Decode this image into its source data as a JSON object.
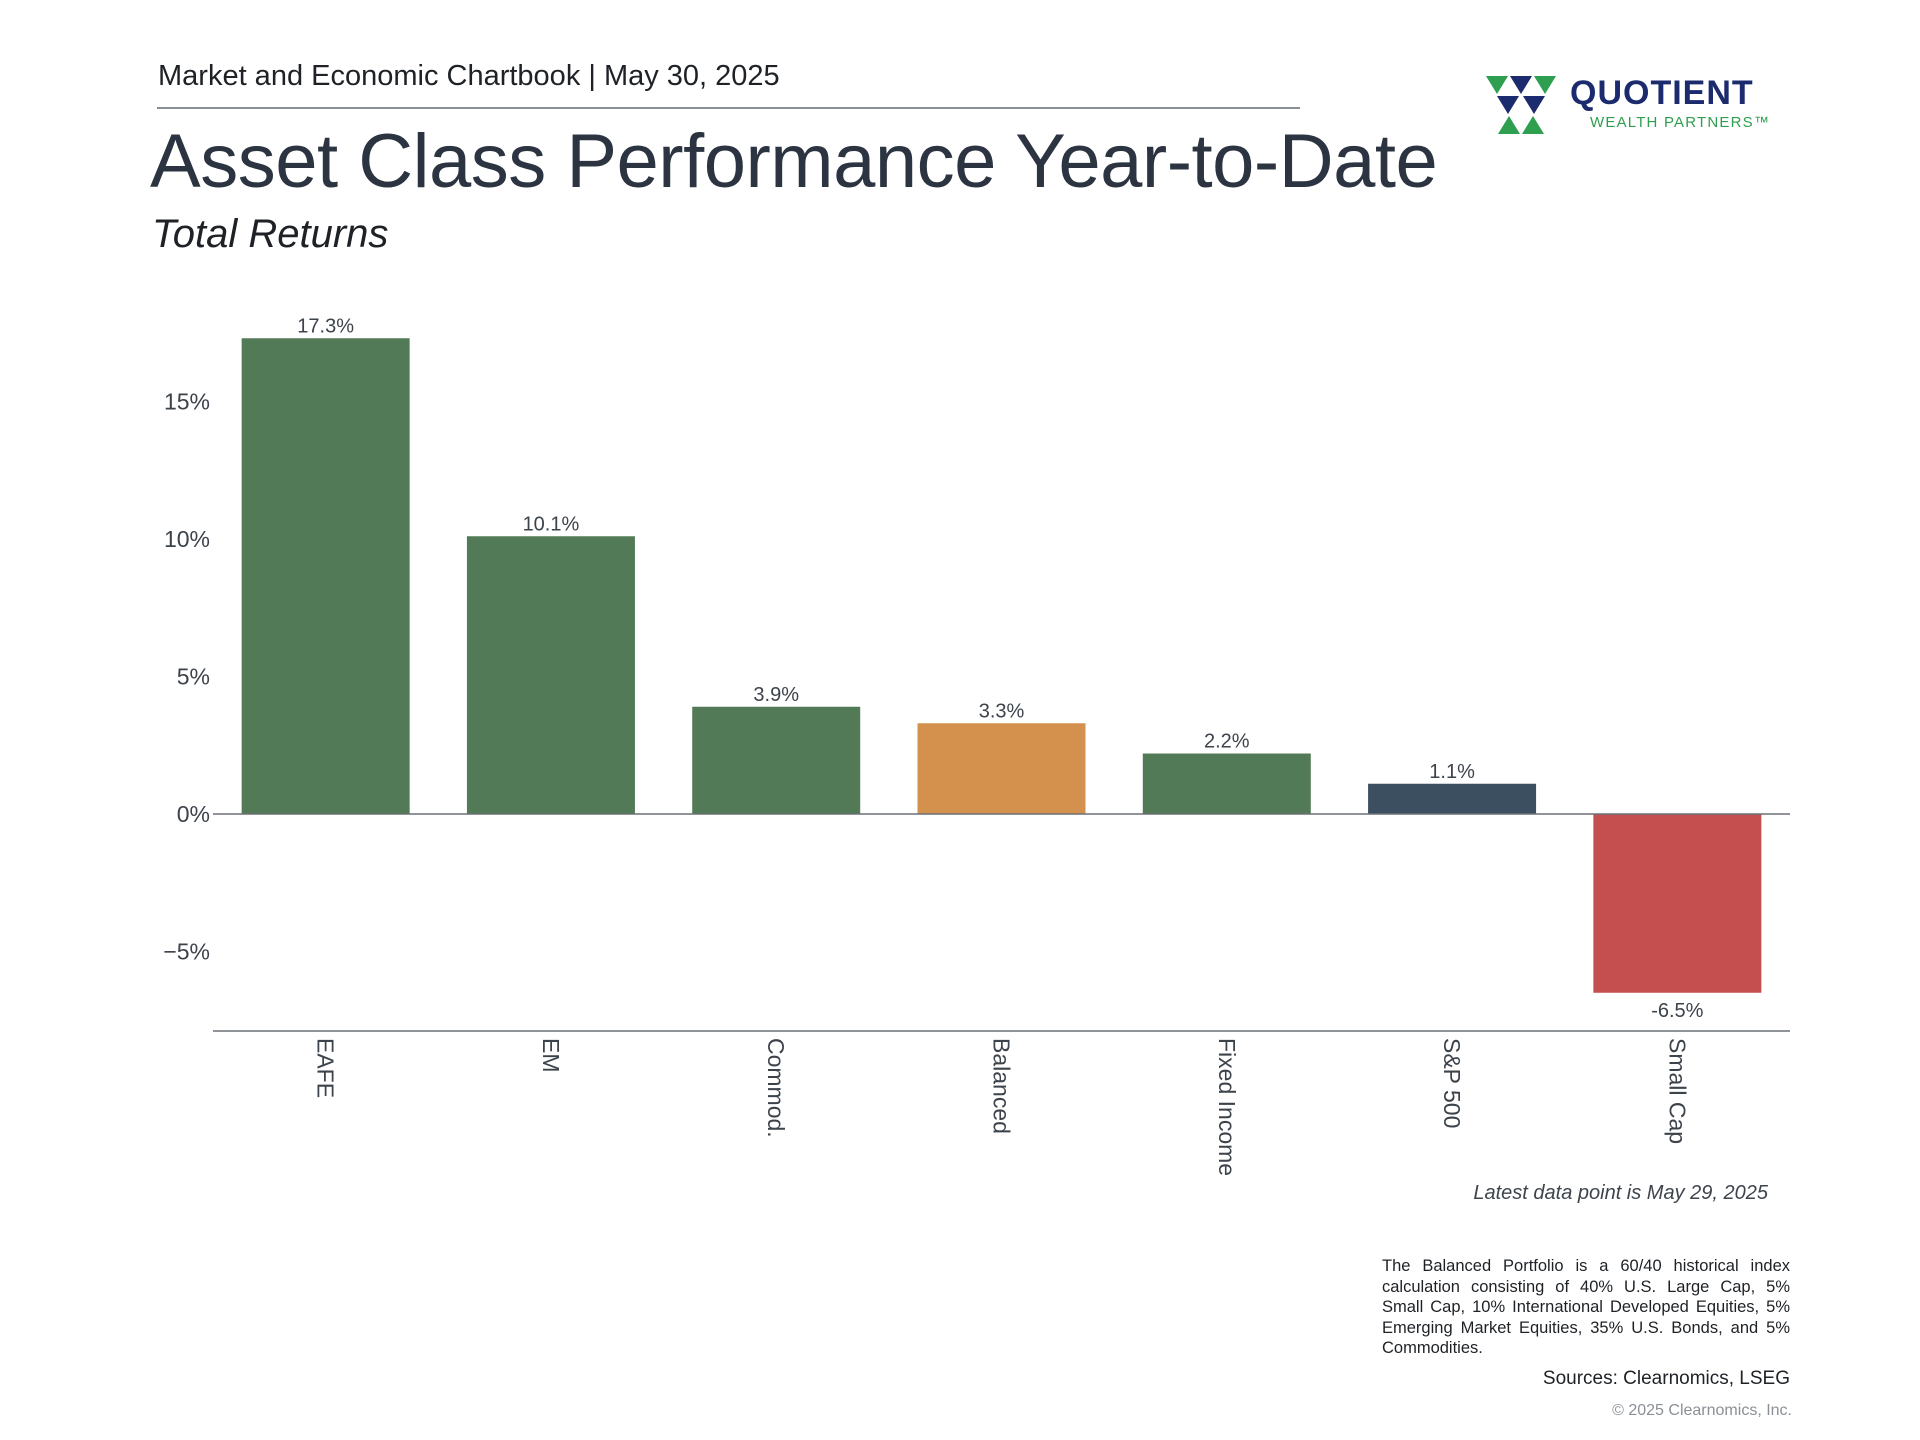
{
  "header": {
    "chartbook_line": "Market and Economic Chartbook | May 30, 2025",
    "title": "Asset Class Performance Year-to-Date",
    "subtitle": "Total Returns"
  },
  "logo": {
    "name": "QUOTIENT",
    "tagline": "WEALTH PARTNERS™",
    "colors": {
      "navy": "#1c2b6e",
      "green": "#2e9e4f"
    }
  },
  "chart_data": {
    "type": "bar",
    "categories": [
      "EAFE",
      "EM",
      "Commod.",
      "Balanced",
      "Fixed Income",
      "S&P 500",
      "Small Cap"
    ],
    "values": [
      17.3,
      10.1,
      3.9,
      3.3,
      2.2,
      1.1,
      -6.5
    ],
    "data_labels": [
      "17.3%",
      "10.1%",
      "3.9%",
      "3.3%",
      "2.2%",
      "1.1%",
      "-6.5%"
    ],
    "bar_colors": [
      "#527a57",
      "#527a57",
      "#527a57",
      "#d4904d",
      "#527a57",
      "#3c4f60",
      "#c44f4e"
    ],
    "yticks": [
      15,
      10,
      5,
      0,
      -5
    ],
    "ytick_labels": [
      "15%",
      "10%",
      "5%",
      "0%",
      "−5%"
    ],
    "ylim": [
      -7.8,
      18.7
    ],
    "xlabel": "",
    "ylabel": "",
    "grid": false,
    "legend": "none"
  },
  "footer": {
    "latest_data": "Latest data point is May 29, 2025",
    "note": "The Balanced Portfolio is a 60/40 historical index calculation consisting of 40% U.S. Large Cap, 5% Small Cap, 10% International Developed Equities, 5% Emerging Market Equities, 35% U.S. Bonds, and 5% Commodities.",
    "sources": "Sources: Clearnomics, LSEG",
    "copyright": "© 2025 Clearnomics, Inc."
  }
}
